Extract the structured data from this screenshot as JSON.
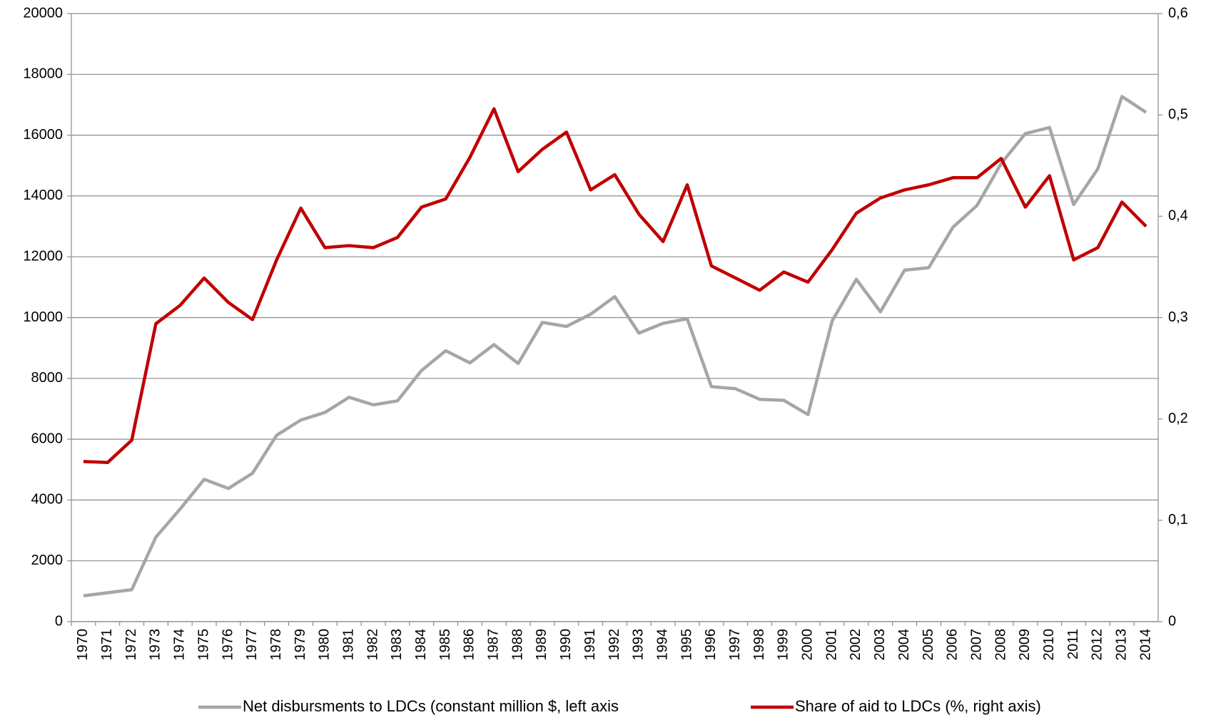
{
  "chart_data": {
    "type": "line",
    "categories": [
      "1970",
      "1971",
      "1972",
      "1973",
      "1974",
      "1975",
      "1976",
      "1977",
      "1978",
      "1979",
      "1980",
      "1981",
      "1982",
      "1983",
      "1984",
      "1985",
      "1986",
      "1987",
      "1988",
      "1989",
      "1990",
      "1991",
      "1992",
      "1993",
      "1994",
      "1995",
      "1996",
      "1997",
      "1998",
      "1999",
      "2000",
      "2001",
      "2002",
      "2003",
      "2004",
      "2005",
      "2006",
      "2007",
      "2008",
      "2009",
      "2010",
      "2011",
      "2012",
      "2013",
      "2014"
    ],
    "series": [
      {
        "name": "Net disbursments to LDCs (constant million $, left axis",
        "color": "#a6a6a6",
        "values": [
          850,
          950,
          1050,
          2780,
          3700,
          4680,
          4380,
          4880,
          6130,
          6630,
          6880,
          7380,
          7130,
          7260,
          8260,
          8910,
          8510,
          9110,
          8490,
          9840,
          9710,
          10110,
          10690,
          9490,
          9810,
          9960,
          7730,
          7660,
          7310,
          7280,
          6810,
          9890,
          11260,
          10190,
          11560,
          11640,
          12970,
          13690,
          15070,
          16050,
          16250,
          13720,
          14890,
          17270,
          16750
        ]
      },
      {
        "name": "Share of aid to LDCs (%, right axis)",
        "color": "#c00000",
        "axis": "y2",
        "values": [
          0.158,
          0.157,
          0.179,
          0.294,
          0.312,
          0.339,
          0.315,
          0.298,
          0.357,
          0.408,
          0.369,
          0.371,
          0.369,
          0.379,
          0.409,
          0.417,
          0.458,
          0.506,
          0.444,
          0.466,
          0.483,
          0.426,
          0.441,
          0.402,
          0.375,
          0.431,
          0.351,
          0.339,
          0.327,
          0.345,
          0.335,
          0.367,
          0.403,
          0.418,
          0.426,
          0.431,
          0.438,
          0.438,
          0.457,
          0.409,
          0.44,
          0.357,
          0.369,
          0.414,
          0.39
        ]
      }
    ],
    "ylim": [
      0,
      20000
    ],
    "yticks": [
      0,
      2000,
      4000,
      6000,
      8000,
      10000,
      12000,
      14000,
      16000,
      18000,
      20000
    ],
    "y2lim": [
      0,
      0.6
    ],
    "y2ticks": [
      0,
      {
        "value": 0.1,
        "label": "0,1"
      },
      {
        "value": 0.2,
        "label": "0,2"
      },
      {
        "value": 0.3,
        "label": "0,3"
      },
      {
        "value": 0.4,
        "label": "0,4"
      },
      {
        "value": 0.5,
        "label": "0,5"
      },
      {
        "value": 0.6,
        "label": "0,6"
      }
    ],
    "grid": true,
    "legend": "bottom"
  }
}
